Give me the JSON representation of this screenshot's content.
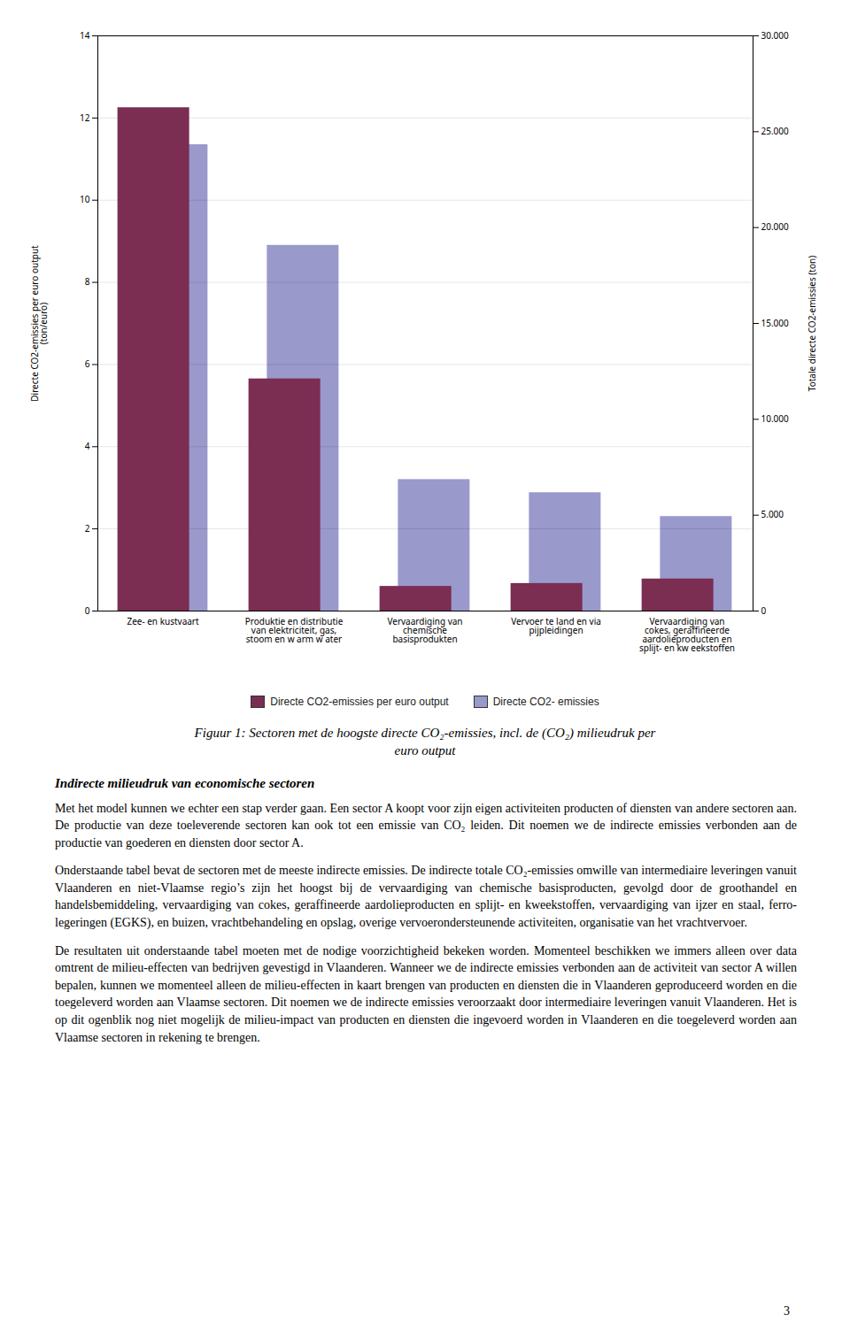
{
  "chart_data": {
    "type": "bar",
    "categories": [
      "Zee- en kustvaart",
      "Produktie en distributie\nvan elektriciteit, gas,\nstoom en w arm w ater",
      "Vervaardiging van\nchemische\nbasisprodukten",
      "Vervoer te land en via\npijpleidingen",
      "Vervaardiging van\ncokes, geraffineerde\naardolieproducten en\nsplijt- en kw eekstoffen"
    ],
    "series": [
      {
        "name": "Directe CO2-emissies per euro output",
        "color": "#7B2D52",
        "values": [
          12.25,
          5.65,
          0.6,
          0.67,
          0.78
        ]
      },
      {
        "name": "Directe CO2- emissies",
        "color": "#9999CC",
        "axis": "y2",
        "values": [
          24321.428571428572,
          19071.428571428572,
          6857.142857142857,
          6171.428571428572,
          4928.571428571428
        ]
      }
    ],
    "ylabel": "Directe CO2-emissies per euro output\n(ton/euro)",
    "y2label": "Totale directe CO2-emissies (ton)",
    "ylim": [
      0,
      14
    ],
    "yticks": [
      0,
      2,
      4,
      6,
      8,
      10,
      12,
      14
    ],
    "y2lim": [
      0,
      30000
    ],
    "y2ticks": [
      0,
      {
        "value": 5000,
        "label": "5.000"
      },
      {
        "value": 10000,
        "label": "10.000"
      },
      {
        "value": 15000,
        "label": "15.000"
      },
      {
        "value": 20000,
        "label": "20.000"
      },
      {
        "value": 25000,
        "label": "25.000"
      },
      {
        "value": 30000,
        "label": "30.000"
      }
    ],
    "grid": true,
    "legend": "bottom",
    "caption": [
      "Figuur 1: Sectoren met de hoogste directe CO₂-emissies, incl. de (CO₂) milieudruk per",
      "euro output"
    ],
    "heading": "Indirecte milieudruk van economische sectoren",
    "paragraphs": [
      "Met het model kunnen we echter een stap verder gaan. Een sector A koopt voor zijn eigen activiteiten producten of diensten van andere sectoren aan. De productie van deze toeleverende sectoren kan ook tot een emissie van CO₂ leiden. Dit noemen we de indirecte emissies verbonden aan de productie van goederen en diensten door sector A.",
      "Onderstaande tabel bevat de sectoren met de meeste indirecte emissies. De indirecte totale CO₂-emissies omwille van intermediaire leveringen vanuit Vlaanderen en niet-Vlaamse regio’s zijn het hoogst bij de vervaardiging van chemische basisproducten, gevolgd door de groothandel en handelsbemiddeling, vervaardiging van cokes, geraffineerde aardolieproducten en splijt- en kweekstoffen, vervaardiging van ijzer en staal, ferro-legeringen (EGKS), en buizen, vrachtbehandeling en opslag, overige vervoerondersteunende activiteiten, organisatie van het vrachtvervoer.",
      "De resultaten uit onderstaande tabel moeten met de nodige voorzichtigheid bekeken worden. Momenteel beschikken we immers alleen over data omtrent de milieu-effecten van bedrijven gevestigd in Vlaanderen. Wanneer we de indirecte emissies verbonden aan de activiteit van sector A willen bepalen, kunnen we momenteel alleen de milieu-effecten in kaart brengen van producten en diensten die in Vlaanderen geproduceerd worden en die toegeleverd worden aan Vlaamse sectoren. Dit noemen we de indirecte emissies veroorzaakt door intermediaire leveringen vanuit Vlaanderen. Het is op dit ogenblik nog niet mogelijk de milieu-impact van producten en diensten die ingevoerd worden in Vlaanderen en die toegeleverd worden aan Vlaamse sectoren in rekening te brengen."
    ],
    "page_number": "3"
  }
}
